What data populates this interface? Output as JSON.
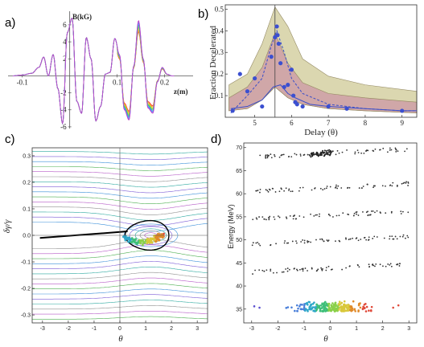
{
  "panels": [
    {
      "label": "a)"
    },
    {
      "label": "b)"
    },
    {
      "label": "c)"
    },
    {
      "label": "d)"
    }
  ],
  "chart_data": [
    {
      "panel": "a)",
      "type": "line",
      "xlabel": "z(m)",
      "ylabel": "B(kG)",
      "xlim": [
        -0.13,
        0.26
      ],
      "ylim": [
        -6.2,
        7.6
      ],
      "xticks": [
        -0.1,
        0.1,
        0.2
      ],
      "yticks": [
        -6,
        -4,
        -2,
        2,
        4,
        6
      ],
      "series": [
        {
          "amplitude_scale": 0.8,
          "color": "#ff3030"
        },
        {
          "amplitude_scale": 0.83,
          "color": "#ff8a2a"
        },
        {
          "amplitude_scale": 0.86,
          "color": "#d7d72a"
        },
        {
          "amplitude_scale": 0.89,
          "color": "#7ccf3a"
        },
        {
          "amplitude_scale": 0.92,
          "color": "#2fbf8c"
        },
        {
          "amplitude_scale": 0.95,
          "color": "#3aa0ff"
        },
        {
          "amplitude_scale": 0.98,
          "color": "#6a5cff"
        },
        {
          "amplitude_scale": 1.0,
          "color": "#c04cc8"
        }
      ],
      "frozen_until_z": 0.1,
      "profile": {
        "x": [
          -0.12,
          -0.1,
          -0.08,
          -0.065,
          -0.055,
          -0.045,
          -0.035,
          -0.025,
          -0.015,
          -0.005,
          0.005,
          0.015,
          0.025,
          0.035,
          0.045,
          0.055,
          0.065,
          0.075,
          0.085,
          0.095,
          0.105,
          0.115,
          0.125,
          0.135,
          0.145,
          0.155,
          0.165,
          0.175,
          0.185,
          0.195,
          0.205,
          0.215
        ],
        "y": [
          0.0,
          0.1,
          0.3,
          1.0,
          2.2,
          0.0,
          2.5,
          -1.5,
          -5.6,
          5.1,
          6.8,
          -3.0,
          -4.4,
          4.5,
          2.0,
          -5.3,
          -3.6,
          0.2,
          0.4,
          4.4,
          2.5,
          -4.0,
          -5.2,
          1.2,
          6.5,
          2.0,
          -3.8,
          -4.4,
          -0.7,
          1.0,
          0.2,
          0.0
        ]
      }
    },
    {
      "panel": "b)",
      "type": "line",
      "xlabel": "Delay (θ)",
      "ylabel": "Fraction Decelerated",
      "xlim": [
        4.2,
        9.4
      ],
      "ylim": [
        0.0,
        0.52
      ],
      "xticks": [
        5,
        6,
        7,
        8,
        9
      ],
      "yticks": [
        0.1,
        0.2,
        0.3,
        0.4,
        0.5
      ],
      "vline_x": 5.55,
      "band_outer": {
        "color": "#d8d3a8",
        "x": [
          4.3,
          4.8,
          5.2,
          5.55,
          5.9,
          6.3,
          7.0,
          8.0,
          9.4
        ],
        "upper": [
          0.15,
          0.2,
          0.34,
          0.51,
          0.42,
          0.27,
          0.19,
          0.15,
          0.12
        ],
        "lower": [
          0.03,
          0.04,
          0.08,
          0.14,
          0.09,
          0.06,
          0.04,
          0.03,
          0.02
        ]
      },
      "band_inner": {
        "color": "#cfa2a8",
        "x": [
          4.3,
          4.8,
          5.2,
          5.55,
          5.9,
          6.3,
          7.0,
          8.0,
          9.4
        ],
        "upper": [
          0.09,
          0.14,
          0.23,
          0.39,
          0.25,
          0.16,
          0.11,
          0.09,
          0.07
        ],
        "lower": [
          0.03,
          0.04,
          0.08,
          0.14,
          0.09,
          0.06,
          0.04,
          0.03,
          0.02
        ]
      },
      "curve_dashed": {
        "x": [
          4.35,
          4.8,
          5.2,
          5.45,
          5.6,
          5.8,
          6.0,
          6.3,
          7.0,
          7.5,
          8.0,
          9.0,
          9.4
        ],
        "y": [
          0.02,
          0.1,
          0.18,
          0.33,
          0.4,
          0.3,
          0.18,
          0.11,
          0.06,
          0.05,
          0.04,
          0.03,
          0.03
        ]
      },
      "curve_solid": {
        "x": [
          4.35,
          4.8,
          5.2,
          5.5,
          5.7,
          5.9,
          6.1,
          6.5,
          7.0,
          8.0,
          9.0,
          9.4
        ],
        "y": [
          0.04,
          0.05,
          0.08,
          0.14,
          0.15,
          0.11,
          0.09,
          0.06,
          0.05,
          0.04,
          0.03,
          0.03
        ]
      },
      "points": {
        "x": [
          4.4,
          4.6,
          4.8,
          5.0,
          5.2,
          5.45,
          5.55,
          5.6,
          5.62,
          5.65,
          5.7,
          5.8,
          5.9,
          6.0,
          6.05,
          6.1,
          6.15,
          6.3,
          7.0,
          7.5,
          9.0
        ],
        "y": [
          0.03,
          0.2,
          0.12,
          0.18,
          0.05,
          0.28,
          0.37,
          0.42,
          0.38,
          0.34,
          0.25,
          0.14,
          0.15,
          0.22,
          0.1,
          0.07,
          0.06,
          0.05,
          0.05,
          0.04,
          0.03
        ]
      }
    },
    {
      "panel": "c)",
      "type": "line",
      "xlabel": "θ",
      "ylabel": "δγ/γ",
      "xlim": [
        -3.4,
        3.4
      ],
      "ylim": [
        -0.33,
        0.33
      ],
      "xticks": [
        -3,
        -2,
        -1,
        0,
        1,
        2,
        3
      ],
      "yticks": [
        -0.3,
        -0.2,
        -0.1,
        0.0,
        0.1,
        0.2,
        0.3
      ],
      "separatrix_color": "#000000",
      "bucket_center": [
        1.2,
        0.0
      ],
      "contour_colors": [
        "#3a8fd9",
        "#7b5bd6",
        "#2ca9a0",
        "#8f8f8f",
        "#b65ac7",
        "#4caf50"
      ]
    },
    {
      "panel": "d)",
      "type": "scatter",
      "xlabel": "θ",
      "ylabel": "Energy (MeV)",
      "xlim": [
        -3.3,
        3.3
      ],
      "ylim": [
        32.0,
        71.0
      ],
      "xticks": [
        -3,
        -2,
        -1,
        0,
        1,
        2,
        3
      ],
      "yticks": [
        35,
        40,
        45,
        50,
        55,
        60,
        65,
        70
      ],
      "band_energies": [
        68.0,
        60.5,
        54.5,
        49.0,
        43.0
      ],
      "accelerated_cluster": {
        "theta_center": 0.0,
        "energy": 35.0
      }
    }
  ]
}
